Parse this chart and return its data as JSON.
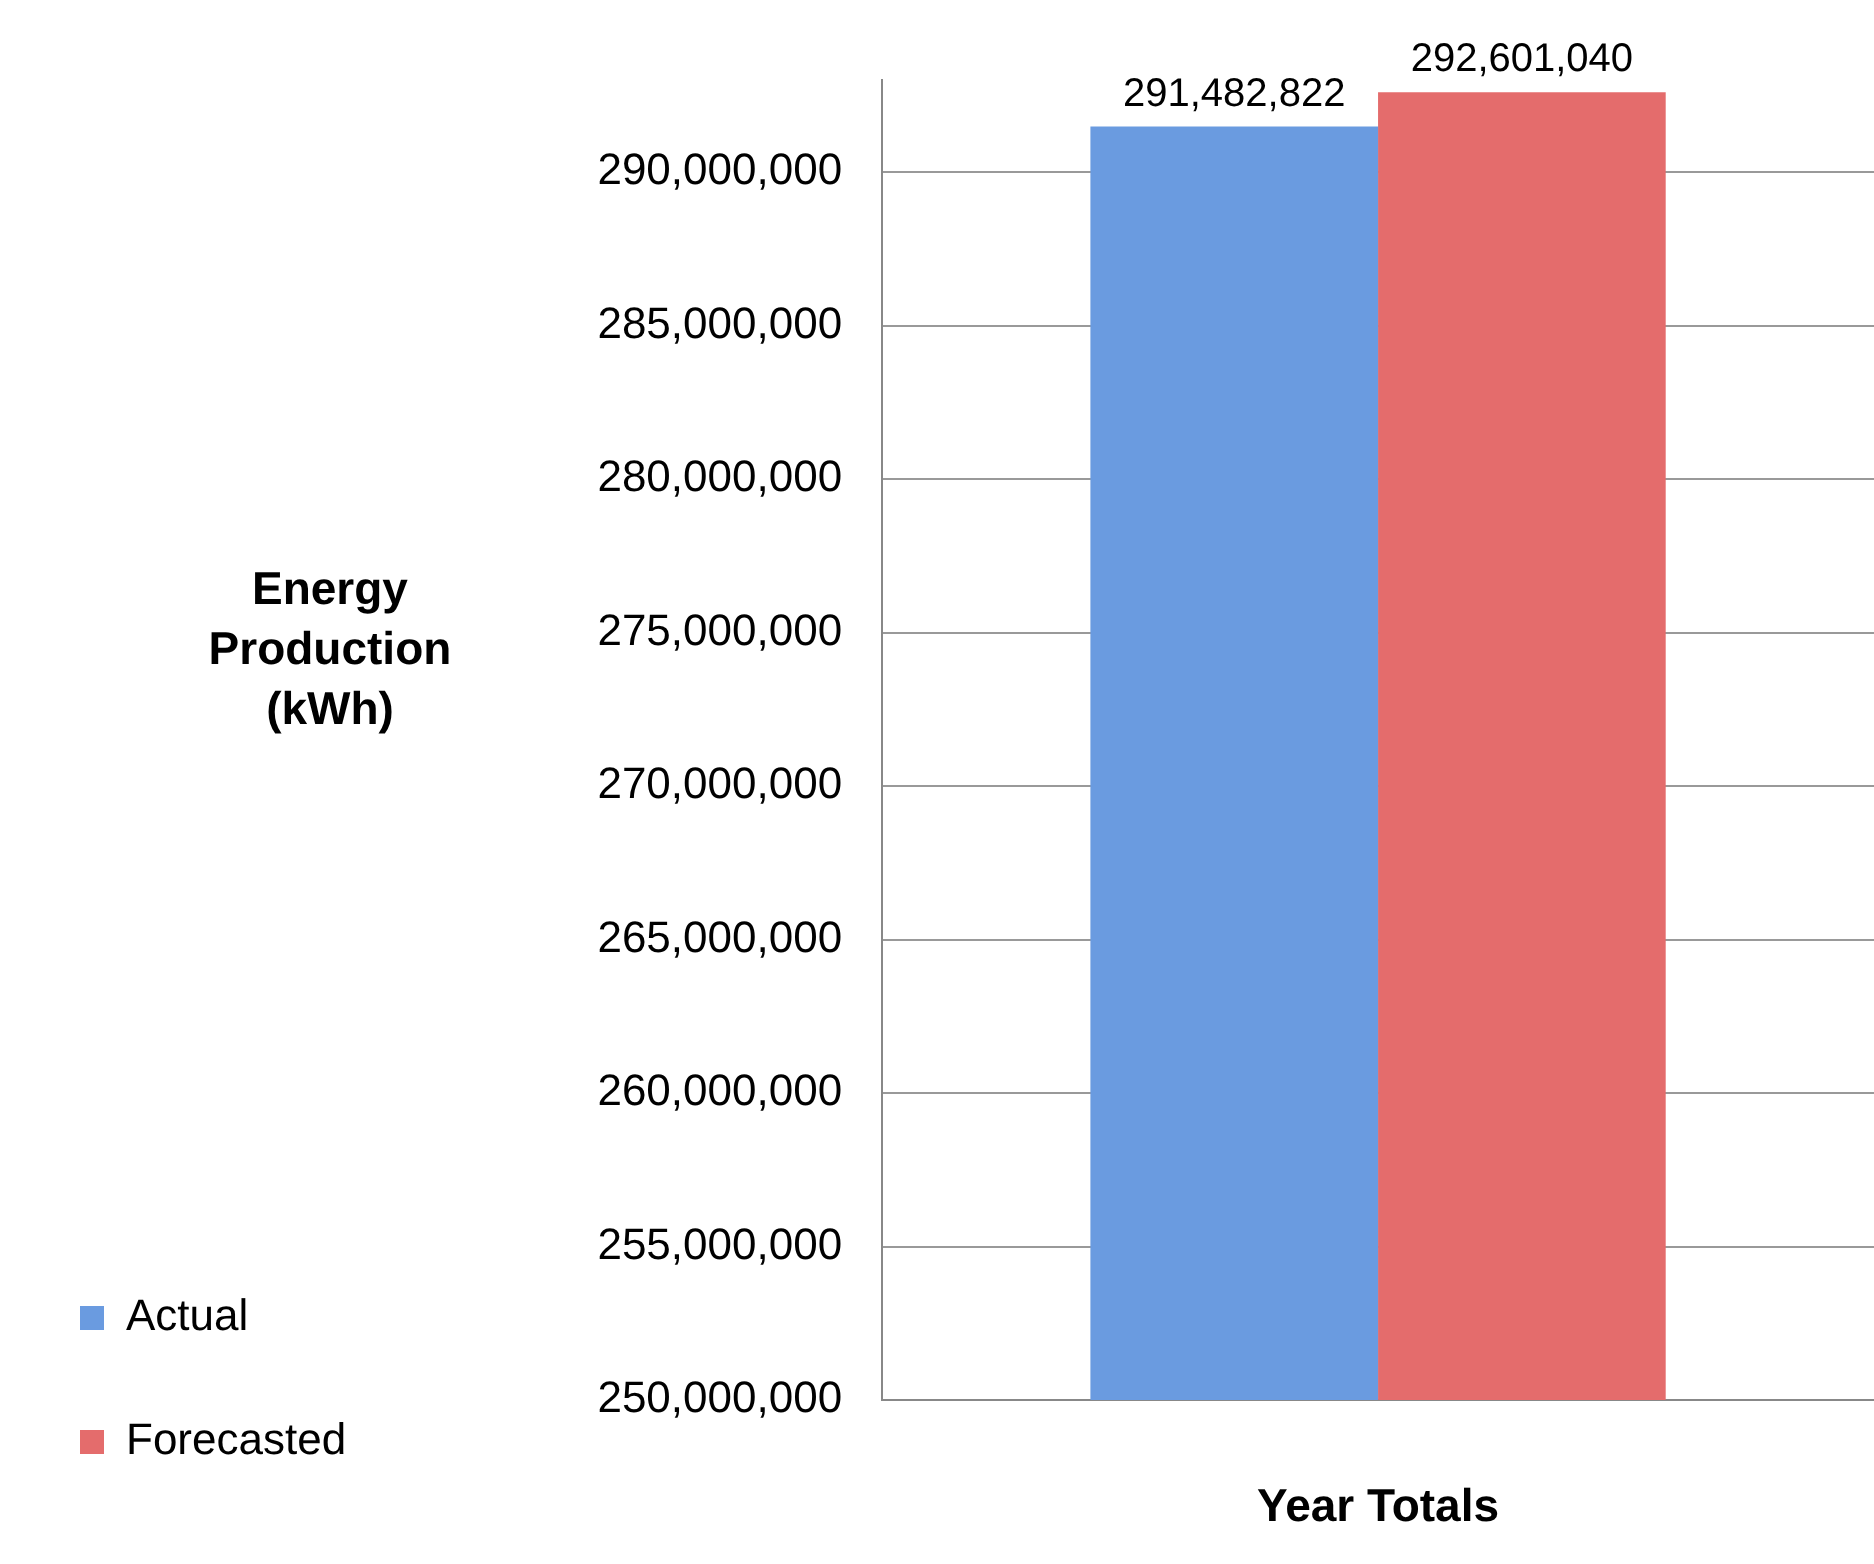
{
  "chart_data": {
    "type": "bar",
    "xlabel": "Year Totals",
    "ylabel": "Energy Production (kWh)",
    "categories": [
      null
    ],
    "series": [
      {
        "name": "Actual",
        "color": "#6a9be0",
        "values": [
          291482822
        ],
        "value_labels": [
          "291,482,822"
        ]
      },
      {
        "name": "Forecasted",
        "color": "#e46c6c",
        "values": [
          292601040
        ],
        "value_labels": [
          "292,601,040"
        ]
      }
    ],
    "ylim": [
      250000000,
      293000000
    ],
    "yticks": [
      {
        "value": 250000000,
        "label": "250,000,000"
      },
      {
        "value": 255000000,
        "label": "255,000,000"
      },
      {
        "value": 260000000,
        "label": "260,000,000"
      },
      {
        "value": 265000000,
        "label": "265,000,000"
      },
      {
        "value": 270000000,
        "label": "270,000,000"
      },
      {
        "value": 275000000,
        "label": "275,000,000"
      },
      {
        "value": 280000000,
        "label": "280,000,000"
      },
      {
        "value": 285000000,
        "label": "285,000,000"
      },
      {
        "value": 290000000,
        "label": "290,000,000"
      }
    ],
    "grid": "y",
    "legend": "bottom left"
  }
}
